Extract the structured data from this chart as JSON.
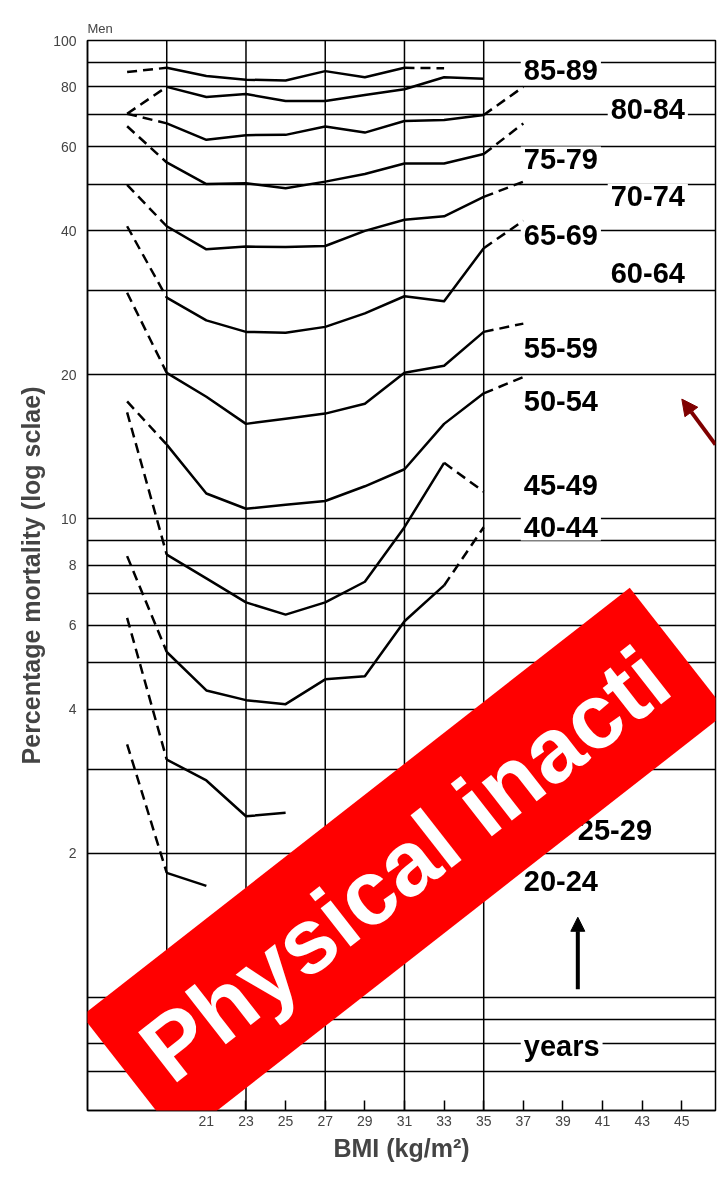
{
  "chart_data": {
    "type": "line",
    "title": "Men",
    "xlabel": "BMI (kg/m²)",
    "ylabel": "Percentage mortality (log sclae)",
    "x": [
      17,
      19,
      21,
      23,
      25,
      27,
      29,
      31,
      33,
      35,
      37
    ],
    "xlim": [
      15,
      46.7
    ],
    "xticks": [
      21,
      23,
      25,
      27,
      29,
      31,
      33,
      35,
      37,
      39,
      41,
      43,
      45
    ],
    "ylim": [
      0.58,
      100
    ],
    "log": "y",
    "yticks": [
      100,
      {
        "value": 90,
        "label": null
      },
      80,
      {
        "value": 70,
        "label": null
      },
      60,
      {
        "value": 50,
        "label": null
      },
      40,
      {
        "value": 30,
        "label": null
      },
      20,
      10,
      {
        "value": 9,
        "label": null
      },
      8,
      {
        "value": 7,
        "label": null
      },
      6,
      {
        "value": 5,
        "label": null
      },
      4,
      {
        "value": 3,
        "label": null
      },
      2,
      {
        "value": 1,
        "label": null
      },
      {
        "value": 0.9,
        "label": null
      },
      {
        "value": 0.8,
        "label": null
      },
      {
        "value": 0.7,
        "label": null
      }
    ],
    "grid": "y",
    "line_style": "solid",
    "ref_lines": [
      {
        "axis": "x",
        "value": 19
      },
      {
        "axis": "x",
        "value": 23
      },
      {
        "axis": "x",
        "value": 27
      },
      {
        "axis": "x",
        "value": 31
      },
      {
        "axis": "x",
        "value": 35
      }
    ],
    "series": [
      {
        "color": "#000000",
        "values": [
          null,
          87.7,
          84.3,
          82.8,
          82.5,
          86.3,
          83.8,
          87.7,
          null,
          null,
          null
        ]
      },
      {
        "color": "#000000",
        "line_style": "dashed",
        "values": [
          85.9,
          87.7,
          null,
          null,
          null,
          null,
          null,
          87.7,
          87.5,
          null,
          null
        ]
      },
      {
        "color": "#000000",
        "values": [
          null,
          80.0,
          76.2,
          77.3,
          74.7,
          74.7,
          76.9,
          79.1,
          83.8,
          83.2,
          null
        ]
      },
      {
        "color": "#000000",
        "line_style": "dashed",
        "values": [
          70.3,
          80.0,
          null,
          null,
          null,
          null,
          null,
          null,
          null,
          null,
          null
        ]
      },
      {
        "color": "#000000",
        "values": [
          null,
          67.1,
          62.0,
          63.4,
          63.5,
          66.1,
          64.2,
          67.9,
          68.2,
          69.9,
          null
        ]
      },
      {
        "color": "#000000",
        "line_style": "dashed",
        "values": [
          70.3,
          67.1,
          null,
          null,
          null,
          null,
          null,
          null,
          null,
          69.9,
          80.0
        ]
      },
      {
        "color": "#000000",
        "values": [
          null,
          55.6,
          50.1,
          50.3,
          49.1,
          50.7,
          52.6,
          55.3,
          55.3,
          57.9,
          null
        ]
      },
      {
        "color": "#000000",
        "line_style": "dashed",
        "values": [
          66.2,
          55.6,
          null,
          null,
          null,
          null,
          null,
          null,
          null,
          57.9,
          67.1
        ]
      },
      {
        "color": "#000000",
        "values": [
          null,
          40.9,
          36.6,
          37.1,
          37.0,
          37.2,
          40.0,
          42.2,
          42.9,
          47.1,
          null
        ]
      },
      {
        "color": "#000000",
        "line_style": "dashed",
        "values": [
          49.9,
          40.9,
          null,
          null,
          null,
          null,
          null,
          null,
          null,
          47.1,
          50.7
        ]
      },
      {
        "color": "#000000",
        "values": [
          null,
          29.0,
          26.0,
          24.6,
          24.5,
          25.2,
          26.9,
          29.2,
          28.5,
          36.8,
          null
        ]
      },
      {
        "color": "#000000",
        "line_style": "dashed",
        "values": [
          40.9,
          29.0,
          null,
          null,
          null,
          null,
          null,
          null,
          null,
          36.8,
          42.0
        ]
      },
      {
        "color": "#000000",
        "values": [
          null,
          20.2,
          18.0,
          15.8,
          16.2,
          16.6,
          17.4,
          20.2,
          20.9,
          24.6,
          null
        ]
      },
      {
        "color": "#000000",
        "line_style": "dashed",
        "values": [
          29.7,
          20.2,
          null,
          null,
          null,
          null,
          null,
          null,
          null,
          24.6,
          25.6
        ]
      },
      {
        "color": "#000000",
        "values": [
          null,
          14.3,
          11.3,
          10.5,
          10.7,
          10.9,
          11.7,
          12.7,
          15.8,
          18.3,
          null
        ]
      },
      {
        "color": "#000000",
        "line_style": "dashed",
        "values": [
          17.6,
          14.3,
          null,
          null,
          null,
          null,
          null,
          null,
          null,
          18.3,
          19.8
        ]
      },
      {
        "color": "#000000",
        "values": [
          null,
          8.42,
          7.51,
          6.69,
          6.31,
          6.69,
          7.39,
          9.61,
          13.1,
          null,
          null
        ]
      },
      {
        "color": "#000000",
        "line_style": "dashed",
        "values": [
          16.7,
          8.42,
          null,
          null,
          null,
          null,
          null,
          null,
          13.1,
          11.4,
          null
        ]
      },
      {
        "color": "#000000",
        "values": [
          null,
          5.27,
          4.38,
          4.18,
          4.1,
          4.62,
          4.69,
          6.11,
          7.26,
          null,
          null
        ]
      },
      {
        "color": "#000000",
        "line_style": "dashed",
        "values": [
          8.36,
          5.27,
          null,
          null,
          null,
          null,
          null,
          null,
          7.26,
          9.61,
          null
        ]
      },
      {
        "color": "#000000",
        "values": [
          null,
          3.14,
          2.84,
          2.39,
          2.43,
          null,
          null,
          null,
          null,
          null,
          null
        ]
      },
      {
        "color": "#000000",
        "line_style": "dashed",
        "values": [
          6.21,
          3.14,
          null,
          null,
          null,
          null,
          null,
          null,
          null,
          null,
          null
        ]
      },
      {
        "color": "#000000",
        "values": [
          null,
          1.82,
          1.71,
          null,
          null,
          null,
          null,
          null,
          null,
          null,
          null
        ]
      },
      {
        "color": "#000000",
        "line_style": "dashed",
        "values": [
          3.38,
          1.82,
          null,
          null,
          null,
          null,
          null,
          null,
          null,
          null,
          null
        ]
      }
    ],
    "annotations": [
      "85-89",
      "80-84",
      "75-79",
      "70-74",
      "65-69",
      "60-64",
      "55-59",
      "50-54",
      "45-49",
      "40-44",
      "25-29",
      "20-24",
      "years",
      "Physical inacti"
    ]
  }
}
